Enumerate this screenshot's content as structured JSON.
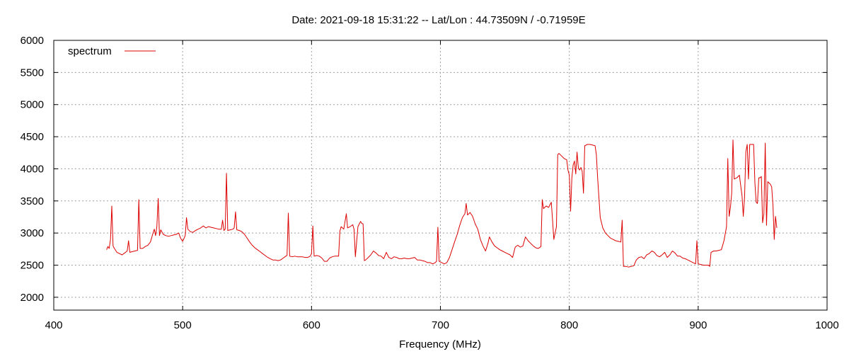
{
  "chart_data": {
    "type": "line",
    "title": "Date: 2021-09-18 15:31:22  --  Lat/Lon : 44.73509N / -0.71959E",
    "xlabel": "Frequency (MHz)",
    "ylabel": "",
    "xlim": [
      400,
      1000
    ],
    "ylim": [
      1800,
      6000
    ],
    "x_ticks": [
      400,
      500,
      600,
      700,
      800,
      900,
      1000
    ],
    "y_ticks": [
      2000,
      2500,
      3000,
      3500,
      4000,
      4500,
      5000,
      5500,
      6000
    ],
    "grid": true,
    "legend": "top-left",
    "colors": {
      "series": "#dd0000",
      "grid": "#a0a0a0",
      "axis": "#000000"
    },
    "series": [
      {
        "name": "spectrum",
        "points": [
          [
            441,
            2740
          ],
          [
            442,
            2790
          ],
          [
            443,
            2760
          ],
          [
            444,
            2900
          ],
          [
            445,
            3420
          ],
          [
            446,
            2800
          ],
          [
            447,
            2760
          ],
          [
            449,
            2700
          ],
          [
            451,
            2680
          ],
          [
            453,
            2660
          ],
          [
            455,
            2690
          ],
          [
            457,
            2720
          ],
          [
            458,
            2880
          ],
          [
            459,
            2700
          ],
          [
            461,
            2710
          ],
          [
            463,
            2720
          ],
          [
            465,
            2730
          ],
          [
            466,
            3520
          ],
          [
            467,
            2760
          ],
          [
            469,
            2760
          ],
          [
            471,
            2790
          ],
          [
            473,
            2810
          ],
          [
            475,
            2860
          ],
          [
            477,
            3000
          ],
          [
            478,
            3060
          ],
          [
            479,
            2960
          ],
          [
            480,
            3100
          ],
          [
            481,
            3540
          ],
          [
            482,
            2960
          ],
          [
            483,
            3050
          ],
          [
            485,
            2980
          ],
          [
            487,
            2960
          ],
          [
            489,
            2950
          ],
          [
            491,
            2960
          ],
          [
            493,
            2970
          ],
          [
            495,
            2980
          ],
          [
            497,
            3000
          ],
          [
            498,
            2940
          ],
          [
            499,
            2900
          ],
          [
            500,
            2870
          ],
          [
            502,
            2960
          ],
          [
            503,
            3240
          ],
          [
            504,
            3060
          ],
          [
            506,
            3020
          ],
          [
            508,
            3010
          ],
          [
            510,
            3040
          ],
          [
            512,
            3060
          ],
          [
            514,
            3080
          ],
          [
            516,
            3110
          ],
          [
            518,
            3080
          ],
          [
            520,
            3100
          ],
          [
            522,
            3090
          ],
          [
            524,
            3080
          ],
          [
            526,
            3070
          ],
          [
            528,
            3060
          ],
          [
            530,
            3060
          ],
          [
            531,
            3200
          ],
          [
            532,
            3040
          ],
          [
            533,
            3060
          ],
          [
            534,
            3930
          ],
          [
            535,
            3040
          ],
          [
            537,
            3050
          ],
          [
            539,
            3060
          ],
          [
            540,
            3080
          ],
          [
            541,
            3330
          ],
          [
            542,
            3050
          ],
          [
            544,
            3040
          ],
          [
            546,
            3020
          ],
          [
            548,
            2980
          ],
          [
            550,
            2920
          ],
          [
            552,
            2860
          ],
          [
            554,
            2810
          ],
          [
            556,
            2770
          ],
          [
            558,
            2740
          ],
          [
            560,
            2710
          ],
          [
            562,
            2680
          ],
          [
            564,
            2650
          ],
          [
            566,
            2620
          ],
          [
            568,
            2600
          ],
          [
            570,
            2580
          ],
          [
            572,
            2580
          ],
          [
            574,
            2570
          ],
          [
            576,
            2580
          ],
          [
            578,
            2610
          ],
          [
            580,
            2640
          ],
          [
            581,
            2650
          ],
          [
            582,
            3310
          ],
          [
            583,
            2640
          ],
          [
            585,
            2630
          ],
          [
            587,
            2640
          ],
          [
            589,
            2630
          ],
          [
            591,
            2630
          ],
          [
            593,
            2630
          ],
          [
            595,
            2620
          ],
          [
            597,
            2620
          ],
          [
            599,
            2640
          ],
          [
            600,
            2680
          ],
          [
            601,
            3110
          ],
          [
            602,
            2640
          ],
          [
            604,
            2650
          ],
          [
            606,
            2640
          ],
          [
            608,
            2610
          ],
          [
            610,
            2560
          ],
          [
            612,
            2560
          ],
          [
            614,
            2610
          ],
          [
            616,
            2630
          ],
          [
            618,
            2640
          ],
          [
            620,
            2640
          ],
          [
            621,
            2640
          ],
          [
            622,
            3030
          ],
          [
            623,
            3100
          ],
          [
            625,
            3060
          ],
          [
            627,
            3300
          ],
          [
            628,
            3080
          ],
          [
            630,
            3100
          ],
          [
            632,
            3130
          ],
          [
            633,
            3060
          ],
          [
            634,
            2630
          ],
          [
            636,
            3100
          ],
          [
            638,
            3180
          ],
          [
            639,
            3150
          ],
          [
            640,
            3140
          ],
          [
            641,
            2570
          ],
          [
            642,
            2580
          ],
          [
            644,
            2620
          ],
          [
            646,
            2660
          ],
          [
            648,
            2720
          ],
          [
            650,
            2690
          ],
          [
            652,
            2650
          ],
          [
            654,
            2640
          ],
          [
            656,
            2600
          ],
          [
            658,
            2700
          ],
          [
            660,
            2620
          ],
          [
            662,
            2600
          ],
          [
            664,
            2630
          ],
          [
            666,
            2620
          ],
          [
            668,
            2600
          ],
          [
            670,
            2600
          ],
          [
            672,
            2610
          ],
          [
            674,
            2600
          ],
          [
            676,
            2600
          ],
          [
            678,
            2610
          ],
          [
            680,
            2620
          ],
          [
            682,
            2580
          ],
          [
            684,
            2580
          ],
          [
            686,
            2570
          ],
          [
            688,
            2560
          ],
          [
            690,
            2540
          ],
          [
            692,
            2540
          ],
          [
            694,
            2520
          ],
          [
            696,
            2540
          ],
          [
            697,
            2560
          ],
          [
            698,
            3090
          ],
          [
            699,
            2560
          ],
          [
            701,
            2540
          ],
          [
            703,
            2520
          ],
          [
            705,
            2540
          ],
          [
            707,
            2620
          ],
          [
            709,
            2740
          ],
          [
            711,
            2860
          ],
          [
            713,
            2980
          ],
          [
            715,
            3120
          ],
          [
            717,
            3240
          ],
          [
            719,
            3300
          ],
          [
            720,
            3460
          ],
          [
            721,
            3280
          ],
          [
            723,
            3320
          ],
          [
            725,
            3260
          ],
          [
            727,
            3140
          ],
          [
            729,
            3060
          ],
          [
            731,
            2900
          ],
          [
            733,
            2800
          ],
          [
            735,
            2720
          ],
          [
            737,
            2850
          ],
          [
            738,
            2940
          ],
          [
            740,
            2860
          ],
          [
            742,
            2800
          ],
          [
            744,
            2770
          ],
          [
            746,
            2740
          ],
          [
            748,
            2720
          ],
          [
            750,
            2700
          ],
          [
            752,
            2680
          ],
          [
            754,
            2660
          ],
          [
            756,
            2620
          ],
          [
            758,
            2780
          ],
          [
            760,
            2810
          ],
          [
            762,
            2780
          ],
          [
            764,
            2800
          ],
          [
            766,
            2940
          ],
          [
            768,
            2880
          ],
          [
            770,
            2840
          ],
          [
            772,
            2800
          ],
          [
            774,
            2770
          ],
          [
            776,
            2760
          ],
          [
            778,
            2790
          ],
          [
            779,
            3520
          ],
          [
            780,
            3380
          ],
          [
            782,
            3420
          ],
          [
            784,
            3400
          ],
          [
            786,
            3480
          ],
          [
            787,
            3200
          ],
          [
            788,
            2900
          ],
          [
            790,
            3100
          ],
          [
            791,
            4220
          ],
          [
            792,
            4240
          ],
          [
            794,
            4200
          ],
          [
            796,
            4160
          ],
          [
            798,
            4140
          ],
          [
            799,
            3980
          ],
          [
            800,
            3900
          ],
          [
            801,
            3340
          ],
          [
            802,
            3860
          ],
          [
            803,
            4060
          ],
          [
            804,
            4120
          ],
          [
            805,
            3920
          ],
          [
            806,
            4260
          ],
          [
            807,
            4020
          ],
          [
            808,
            3980
          ],
          [
            809,
            4020
          ],
          [
            810,
            3960
          ],
          [
            811,
            3620
          ],
          [
            812,
            4360
          ],
          [
            814,
            4380
          ],
          [
            816,
            4380
          ],
          [
            818,
            4370
          ],
          [
            820,
            4360
          ],
          [
            821,
            4220
          ],
          [
            822,
            3860
          ],
          [
            824,
            3240
          ],
          [
            826,
            3080
          ],
          [
            828,
            3000
          ],
          [
            830,
            2960
          ],
          [
            832,
            2920
          ],
          [
            834,
            2900
          ],
          [
            836,
            2880
          ],
          [
            838,
            2870
          ],
          [
            840,
            2860
          ],
          [
            841,
            3200
          ],
          [
            842,
            2480
          ],
          [
            844,
            2480
          ],
          [
            846,
            2470
          ],
          [
            848,
            2480
          ],
          [
            850,
            2490
          ],
          [
            852,
            2580
          ],
          [
            854,
            2620
          ],
          [
            856,
            2630
          ],
          [
            858,
            2600
          ],
          [
            860,
            2660
          ],
          [
            862,
            2680
          ],
          [
            864,
            2720
          ],
          [
            866,
            2700
          ],
          [
            868,
            2650
          ],
          [
            870,
            2630
          ],
          [
            872,
            2660
          ],
          [
            874,
            2700
          ],
          [
            876,
            2620
          ],
          [
            878,
            2660
          ],
          [
            880,
            2720
          ],
          [
            882,
            2690
          ],
          [
            884,
            2640
          ],
          [
            886,
            2640
          ],
          [
            888,
            2610
          ],
          [
            890,
            2600
          ],
          [
            892,
            2580
          ],
          [
            894,
            2560
          ],
          [
            896,
            2540
          ],
          [
            898,
            2520
          ],
          [
            899,
            2880
          ],
          [
            900,
            2520
          ],
          [
            902,
            2510
          ],
          [
            904,
            2500
          ],
          [
            906,
            2500
          ],
          [
            908,
            2500
          ],
          [
            909,
            2480
          ],
          [
            910,
            2700
          ],
          [
            912,
            2720
          ],
          [
            914,
            2720
          ],
          [
            916,
            2730
          ],
          [
            918,
            2740
          ],
          [
            920,
            2880
          ],
          [
            921,
            2990
          ],
          [
            922,
            3100
          ],
          [
            923,
            4160
          ],
          [
            924,
            3260
          ],
          [
            925,
            3400
          ],
          [
            926,
            3620
          ],
          [
            927,
            4450
          ],
          [
            928,
            3840
          ],
          [
            930,
            3860
          ],
          [
            932,
            3900
          ],
          [
            934,
            3580
          ],
          [
            935,
            3260
          ],
          [
            936,
            3560
          ],
          [
            937,
            4260
          ],
          [
            938,
            4380
          ],
          [
            939,
            3840
          ],
          [
            940,
            4380
          ],
          [
            942,
            4380
          ],
          [
            943,
            4380
          ],
          [
            944,
            3780
          ],
          [
            945,
            3480
          ],
          [
            946,
            3460
          ],
          [
            947,
            3860
          ],
          [
            948,
            3860
          ],
          [
            949,
            3880
          ],
          [
            950,
            3160
          ],
          [
            951,
            3300
          ],
          [
            952,
            4400
          ],
          [
            953,
            3120
          ],
          [
            954,
            3800
          ],
          [
            955,
            3780
          ],
          [
            956,
            3760
          ],
          [
            957,
            3720
          ],
          [
            958,
            3440
          ],
          [
            959,
            2900
          ],
          [
            960,
            3260
          ],
          [
            961,
            3080
          ]
        ]
      }
    ]
  }
}
